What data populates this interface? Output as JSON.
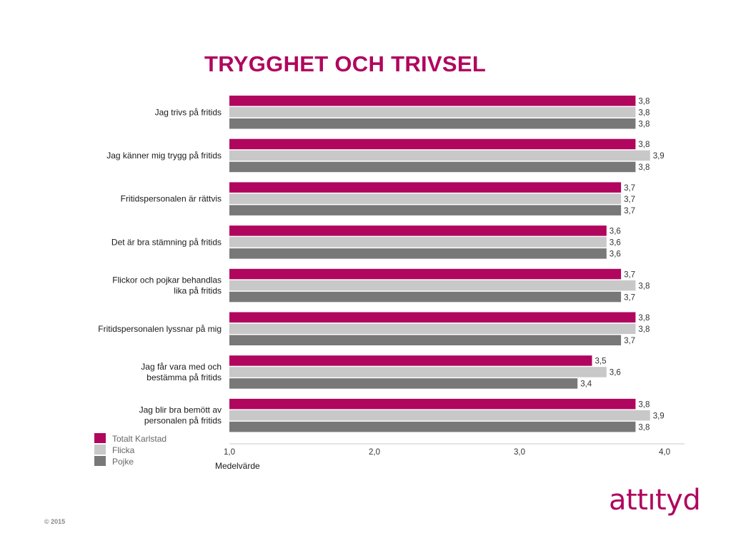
{
  "title": "TRYGGHET OCH TRIVSEL",
  "footer": "© 2015",
  "logo": "attıtyd",
  "colors": {
    "title": "#b0065e",
    "series": [
      "#b0065e",
      "#c8c8c8",
      "#787878"
    ],
    "axis": "#c8c8c8"
  },
  "chart_data": {
    "type": "bar",
    "orientation": "horizontal",
    "title": "TRYGGHET OCH TRIVSEL",
    "xlabel": "Medelvärde",
    "xlim": [
      1.0,
      4.0
    ],
    "x_ticks": [
      "1,0",
      "2,0",
      "3,0",
      "4,0"
    ],
    "categories": [
      [
        "Jag trivs på fritids"
      ],
      [
        "Jag känner mig trygg på fritids"
      ],
      [
        "Fritidspersonalen är rättvis"
      ],
      [
        "Det är bra stämning på fritids"
      ],
      [
        "Flickor och pojkar behandlas",
        "lika på fritids"
      ],
      [
        "Fritidspersonalen lyssnar på mig"
      ],
      [
        "Jag får vara med och",
        "bestämma på fritids"
      ],
      [
        "Jag blir bra bemött av",
        "personalen på fritids"
      ]
    ],
    "series": [
      {
        "name": "Totalt Karlstad",
        "values": [
          3.8,
          3.8,
          3.7,
          3.6,
          3.7,
          3.8,
          3.5,
          3.8
        ],
        "labels": [
          "3,8",
          "3,8",
          "3,7",
          "3,6",
          "3,7",
          "3,8",
          "3,5",
          "3,8"
        ]
      },
      {
        "name": "Flicka",
        "values": [
          3.8,
          3.9,
          3.7,
          3.6,
          3.8,
          3.8,
          3.6,
          3.9
        ],
        "labels": [
          "3,8",
          "3,9",
          "3,7",
          "3,6",
          "3,8",
          "3,8",
          "3,6",
          "3,9"
        ]
      },
      {
        "name": "Pojke",
        "values": [
          3.8,
          3.8,
          3.7,
          3.6,
          3.7,
          3.7,
          3.4,
          3.8
        ],
        "labels": [
          "3,8",
          "3,8",
          "3,7",
          "3,6",
          "3,7",
          "3,7",
          "3,4",
          "3,8"
        ]
      }
    ],
    "legend_position": "bottom-left",
    "grid": false
  }
}
